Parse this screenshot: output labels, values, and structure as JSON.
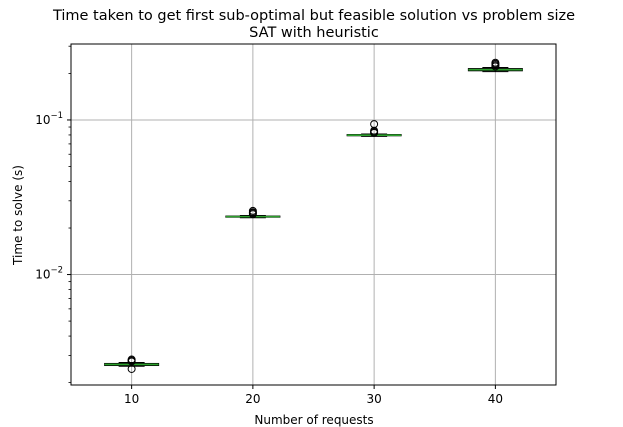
{
  "chart_data": {
    "type": "box",
    "title": "Time taken to get first sub-optimal but feasible solution vs problem size",
    "subtitle": "SAT with heuristic",
    "xlabel": "Number of requests",
    "ylabel": "Time to solve (s)",
    "yscale": "log",
    "ylim": [
      0.00193,
      0.31
    ],
    "xlim": [
      5,
      45
    ],
    "grid": true,
    "x_ticks": [
      "10",
      "20",
      "30",
      "40"
    ],
    "y_ticks": [
      {
        "value": 0.01,
        "base": "10",
        "exp": "−2"
      },
      {
        "value": 0.1,
        "base": "10",
        "exp": "−1"
      }
    ],
    "colors": {
      "box": "#000000",
      "median": "#2ca02c",
      "grid": "#b0b0b0",
      "flier": "#000000"
    },
    "boxes": [
      {
        "x": 10,
        "whisker_low": 0.00255,
        "q1": 0.00258,
        "median": 0.00262,
        "q3": 0.00266,
        "whisker_high": 0.0027,
        "fliers": [
          0.00245,
          0.00274,
          0.00278,
          0.00282
        ]
      },
      {
        "x": 20,
        "whisker_low": 0.0233,
        "q1": 0.0235,
        "median": 0.0237,
        "q3": 0.0239,
        "whisker_high": 0.0241,
        "fliers": [
          0.0246,
          0.025,
          0.0253,
          0.0258
        ]
      },
      {
        "x": 30,
        "whisker_low": 0.0783,
        "q1": 0.079,
        "median": 0.0797,
        "q3": 0.0805,
        "whisker_high": 0.0812,
        "fliers": [
          0.0825,
          0.0838,
          0.0852,
          0.094
        ]
      },
      {
        "x": 40,
        "whisker_low": 0.2055,
        "q1": 0.208,
        "median": 0.2115,
        "q3": 0.215,
        "whisker_high": 0.2185,
        "fliers": [
          0.222,
          0.2265,
          0.2305,
          0.2345
        ]
      }
    ]
  }
}
